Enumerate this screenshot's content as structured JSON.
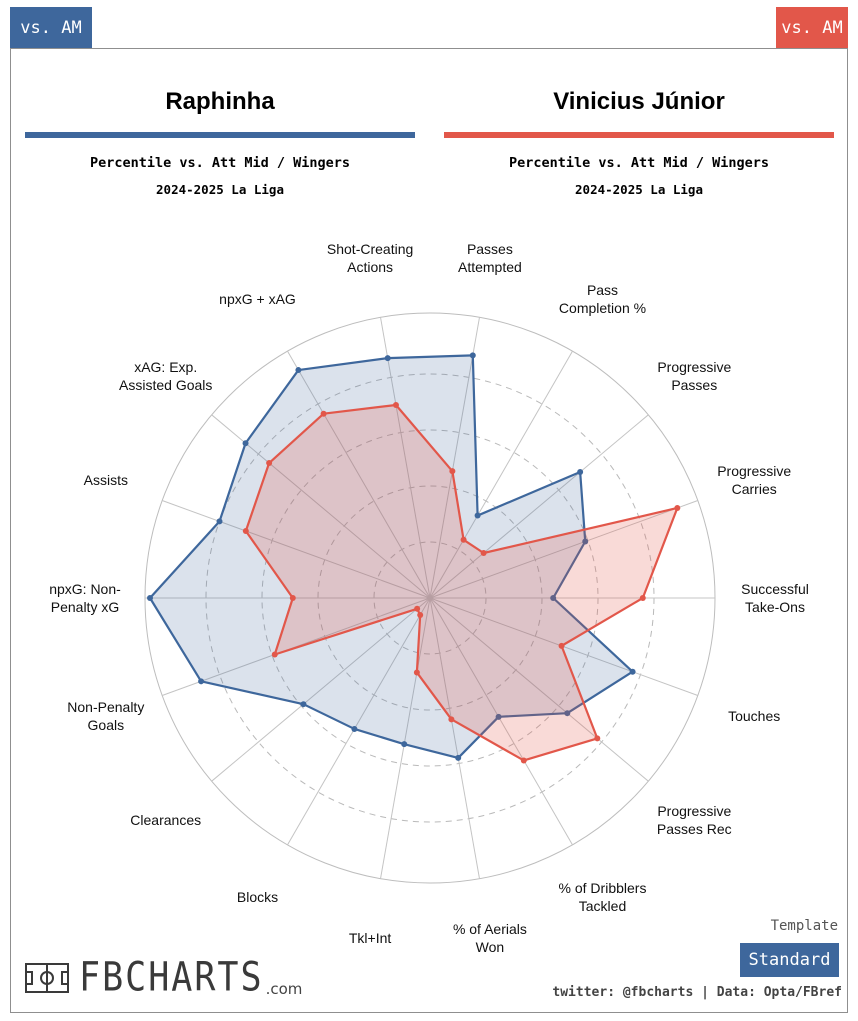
{
  "badges": {
    "left": "vs. AM",
    "right": "vs. AM"
  },
  "players": [
    {
      "name": "Raphinha",
      "subtitle": "Percentile vs. Att Mid / Wingers",
      "season": "2024-2025 La Liga",
      "color": "#3e679c"
    },
    {
      "name": "Vinicius Júnior",
      "subtitle": "Percentile vs. Att Mid / Wingers",
      "season": "2024-2025 La Liga",
      "color": "#e2574a"
    }
  ],
  "chart_data": {
    "type": "radar",
    "title": "Raphinha vs Vinicius Júnior",
    "range": [
      0,
      100
    ],
    "categories": [
      "Passes\nAttempted",
      "Pass\nCompletion %",
      "Progressive\nPasses",
      "Progressive\nCarries",
      "Successful\nTake-Ons",
      "Touches",
      "Progressive\nPasses Rec",
      "% of Dribblers\nTackled",
      "% of Aerials\nWon",
      "Tkl+Int",
      "Blocks",
      "Clearances",
      "Non-Penalty\nGoals",
      "npxG: Non-\nPenalty xG",
      "Assists",
      "xAG: Exp.\nAssisted Goals",
      "npxG + xAG",
      "Shot-Creating\nActions"
    ],
    "series": [
      {
        "name": "Raphinha",
        "color": "#3e679c",
        "values": [
          88,
          34,
          70,
          59,
          44,
          77,
          64,
          49,
          58,
          53,
          54,
          59,
          87,
          100,
          80,
          86,
          94,
          87
        ]
      },
      {
        "name": "Vinicius Júnior",
        "color": "#e2574a",
        "values": [
          46,
          24,
          25,
          94,
          76,
          50,
          78,
          67,
          44,
          27,
          7,
          6,
          59,
          49,
          70,
          75,
          76,
          70
        ]
      }
    ]
  },
  "footer": {
    "template_label": "Template",
    "template_button": "Standard",
    "credit": "twitter: @fbcharts | Data: Opta/FBref",
    "logo_text": "FBCHARTS",
    "logo_suffix": ".com"
  }
}
